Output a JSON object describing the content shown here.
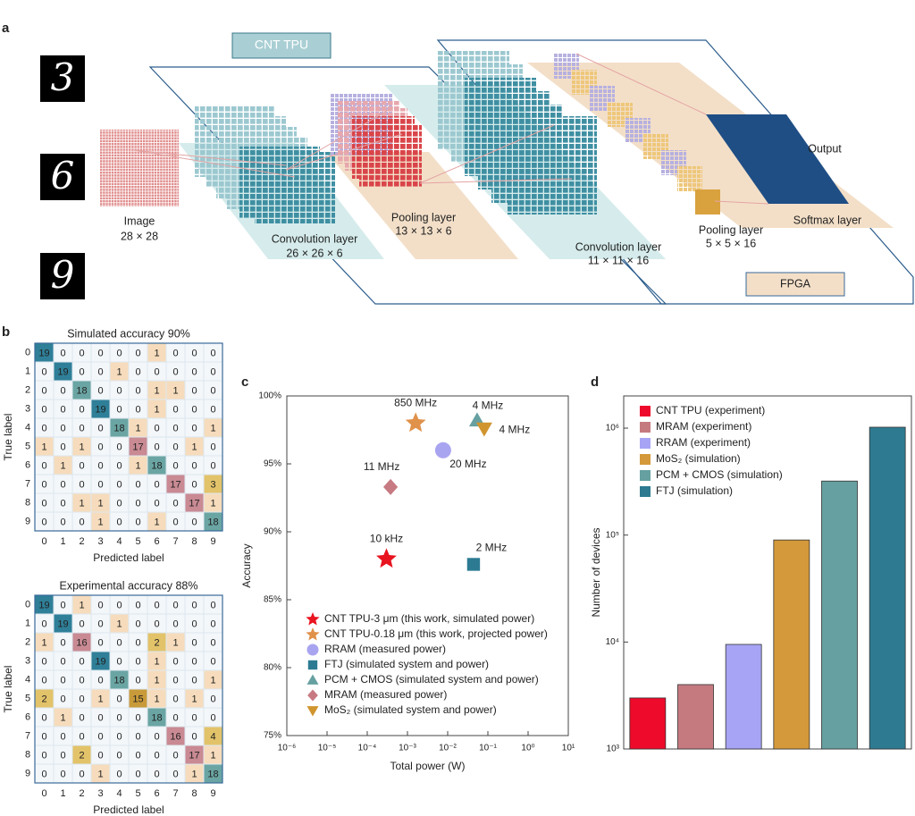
{
  "panels": [
    "a",
    "b",
    "c",
    "d"
  ],
  "diagram": {
    "digits": [
      "3",
      "6",
      "9"
    ],
    "tpu_label": "CNT TPU",
    "fpga_label": "FPGA",
    "image": {
      "name": "Image",
      "size": "28 × 28"
    },
    "conv1": {
      "name": "Convolution layer",
      "size": "26 × 26 × 6"
    },
    "pool1": {
      "name": "Pooling layer",
      "size": "13 × 13 × 6"
    },
    "conv2": {
      "name": "Convolution layer",
      "size": "11 × 11 × 16"
    },
    "pool2": {
      "name": "Pooling layer",
      "size": "5 × 5 × 16"
    },
    "output": "Output",
    "softmax": "Softmax layer"
  },
  "chart_data": [
    {
      "type": "heatmap",
      "title": "Simulated accuracy 90%",
      "x_label": "Predicted label",
      "y_label": "True label",
      "categories": [
        0,
        1,
        2,
        3,
        4,
        5,
        6,
        7,
        8,
        9
      ],
      "values": [
        [
          19,
          0,
          0,
          0,
          0,
          0,
          1,
          0,
          0,
          0
        ],
        [
          0,
          19,
          0,
          0,
          1,
          0,
          0,
          0,
          0,
          0
        ],
        [
          0,
          0,
          18,
          0,
          0,
          0,
          1,
          1,
          0,
          0
        ],
        [
          0,
          0,
          0,
          19,
          0,
          0,
          1,
          0,
          0,
          0
        ],
        [
          0,
          0,
          0,
          0,
          18,
          1,
          0,
          0,
          0,
          1
        ],
        [
          1,
          0,
          1,
          0,
          0,
          17,
          0,
          0,
          1,
          0
        ],
        [
          0,
          1,
          0,
          0,
          0,
          1,
          18,
          0,
          0,
          0
        ],
        [
          0,
          0,
          0,
          0,
          0,
          0,
          0,
          17,
          0,
          3
        ],
        [
          0,
          0,
          1,
          1,
          0,
          0,
          0,
          0,
          17,
          1
        ],
        [
          0,
          0,
          0,
          1,
          0,
          0,
          1,
          0,
          0,
          18
        ]
      ]
    },
    {
      "type": "heatmap",
      "title": "Experimental accuracy 88%",
      "x_label": "Predicted  label",
      "y_label": "True label",
      "categories": [
        0,
        1,
        2,
        3,
        4,
        5,
        6,
        7,
        8,
        9
      ],
      "values": [
        [
          19,
          0,
          1,
          0,
          0,
          0,
          0,
          0,
          0,
          0
        ],
        [
          0,
          19,
          0,
          0,
          1,
          0,
          0,
          0,
          0,
          0
        ],
        [
          1,
          0,
          16,
          0,
          0,
          0,
          2,
          1,
          0,
          0
        ],
        [
          0,
          0,
          0,
          19,
          0,
          0,
          1,
          0,
          0,
          0
        ],
        [
          0,
          0,
          0,
          0,
          18,
          0,
          1,
          0,
          0,
          1
        ],
        [
          2,
          0,
          0,
          1,
          0,
          15,
          1,
          0,
          1,
          0
        ],
        [
          0,
          1,
          0,
          0,
          0,
          0,
          18,
          0,
          0,
          0
        ],
        [
          0,
          0,
          0,
          0,
          0,
          0,
          0,
          16,
          0,
          4
        ],
        [
          0,
          0,
          2,
          0,
          0,
          0,
          0,
          0,
          17,
          1
        ],
        [
          0,
          0,
          0,
          1,
          0,
          0,
          0,
          0,
          1,
          18
        ]
      ]
    },
    {
      "type": "scatter",
      "x_label": "Total power (W)",
      "y_label": "Accuracy",
      "x_log": true,
      "xlim": [
        1e-06,
        10
      ],
      "xticks": [
        {
          "value": 1e-06,
          "label": "10⁻⁶"
        },
        {
          "value": 1e-05,
          "label": "10⁻⁵"
        },
        {
          "value": 0.0001,
          "label": "10⁻⁴"
        },
        {
          "value": 0.001,
          "label": "10⁻³"
        },
        {
          "value": 0.01,
          "label": "10⁻²"
        },
        {
          "value": 0.1,
          "label": "10⁻¹"
        },
        {
          "value": 1,
          "label": "10⁰"
        },
        {
          "value": 10,
          "label": "10¹"
        }
      ],
      "ylim": [
        75,
        100
      ],
      "yticks": [
        {
          "value": 75,
          "label": "75%"
        },
        {
          "value": 80,
          "label": "80%"
        },
        {
          "value": 85,
          "label": "85%"
        },
        {
          "value": 90,
          "label": "90%"
        },
        {
          "value": 95,
          "label": "95%"
        },
        {
          "value": 100,
          "label": "100%"
        }
      ],
      "series": [
        {
          "name": "CNT TPU-3 μm (this work, simulated power)",
          "color": "#e8141f",
          "marker": "star",
          "x": [
            0.0003
          ],
          "values": [
            88
          ],
          "label": "10 kHz"
        },
        {
          "name": "CNT TPU-0.18 μm (this work, projected power)",
          "color": "#e0914a",
          "marker": "star",
          "x": [
            0.0016
          ],
          "values": [
            98
          ],
          "label": "850 MHz"
        },
        {
          "name": "RRAM (measured power)",
          "color": "#a9a4f0",
          "marker": "circle",
          "x": [
            0.0077
          ],
          "values": [
            96
          ],
          "label": "20 MHz"
        },
        {
          "name": "FTJ (simulated system and power)",
          "color": "#2c7b92",
          "marker": "square",
          "x": [
            0.044
          ],
          "values": [
            87.6
          ],
          "label": "2 MHz"
        },
        {
          "name": "PCM + CMOS (simulated system and power)",
          "color": "#66a0a0",
          "marker": "triangle",
          "x": [
            0.054
          ],
          "values": [
            98.2
          ],
          "label": "4 MHz"
        },
        {
          "name": "MRAM (measured power)",
          "color": "#c77a82",
          "marker": "diamond",
          "x": [
            0.00038
          ],
          "values": [
            93.3
          ],
          "label": "11 MHz"
        },
        {
          "name": "MoS₂ (simulated system and power)",
          "color": "#d0952f",
          "marker": "triangle-down",
          "x": [
            0.081
          ],
          "values": [
            97.6
          ],
          "label": "4 MHz"
        }
      ]
    },
    {
      "type": "bar",
      "y_label": "Number of devices",
      "y_log": true,
      "ylim": [
        1000,
        2000000
      ],
      "yticks": [
        {
          "value": 1000,
          "label": "10³"
        },
        {
          "value": 10000,
          "label": "10⁴"
        },
        {
          "value": 100000,
          "label": "10⁵"
        },
        {
          "value": 1000000,
          "label": "10⁶"
        }
      ],
      "series": [
        {
          "name": "CNT TPU (experiment)",
          "color": "#ee0a2a",
          "values": [
            3000
          ]
        },
        {
          "name": "MRAM (experiment)",
          "color": "#c57a80",
          "values": [
            4000
          ]
        },
        {
          "name": "RRAM (experiment)",
          "color": "#a7a4f5",
          "values": [
            9500
          ]
        },
        {
          "name": "MoS₂ (simulation)",
          "color": "#d4993a",
          "values": [
            90000
          ]
        },
        {
          "name": "PCM + CMOS (simulation)",
          "color": "#66a0a0",
          "values": [
            320000
          ]
        },
        {
          "name": "FTJ (simulation)",
          "color": "#2e7b91",
          "values": [
            1020000
          ]
        }
      ]
    }
  ]
}
